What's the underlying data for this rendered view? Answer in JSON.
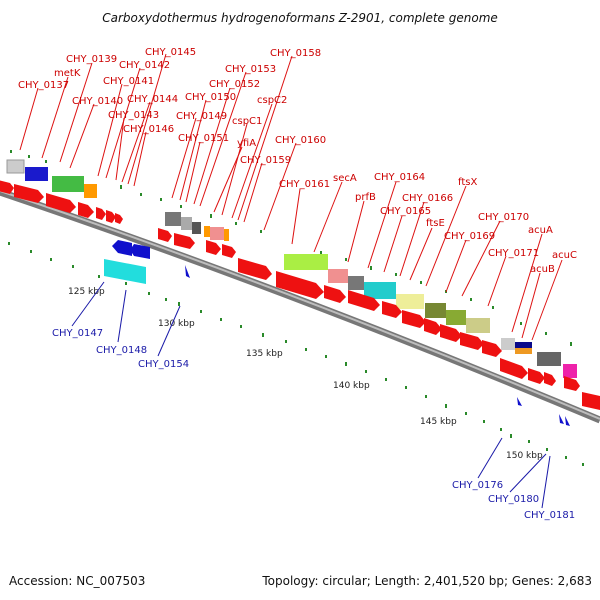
{
  "title": "Carboxydothermus hydrogenoformans Z-2901, complete genome",
  "footer": {
    "accession": "Accession: NC_007503",
    "topology": "Topology: circular; Length: 2,401,520 bp; Genes: 2,683"
  },
  "kbp_labels": [
    "125 kbp",
    "130 kbp",
    "135 kbp",
    "140 kbp",
    "145 kbp",
    "150 kbp"
  ],
  "forward_labels": [
    "CHY_0137",
    "metK",
    "CHY_0139",
    "CHY_0140",
    "CHY_0141",
    "CHY_0142",
    "CHY_0143",
    "CHY_0144",
    "CHY_0145",
    "CHY_0146",
    "CHY_0149",
    "CHY_0150",
    "CHY_0151",
    "CHY_0152",
    "CHY_0153",
    "yfiA",
    "cspC1",
    "cspC2",
    "CHY_0158",
    "CHY_0159",
    "CHY_0160",
    "CHY_0161",
    "secA",
    "prfB",
    "CHY_0164",
    "CHY_0165",
    "ftsE",
    "CHY_0166",
    "ftsX",
    "CHY_0169",
    "CHY_0170",
    "CHY_0171",
    "acuA",
    "acuB",
    "acuC"
  ],
  "reverse_labels": [
    "CHY_0147",
    "CHY_0148",
    "CHY_0154",
    "CHY_0176",
    "CHY_0180",
    "CHY_0181"
  ],
  "colors": {
    "forward_gene": "#ee1111",
    "reverse_gene": "#1010cc",
    "backbone": "#888888",
    "tick": "#2a8a2a",
    "label_red": "#cc0000",
    "label_blue": "#1a1aa8"
  }
}
